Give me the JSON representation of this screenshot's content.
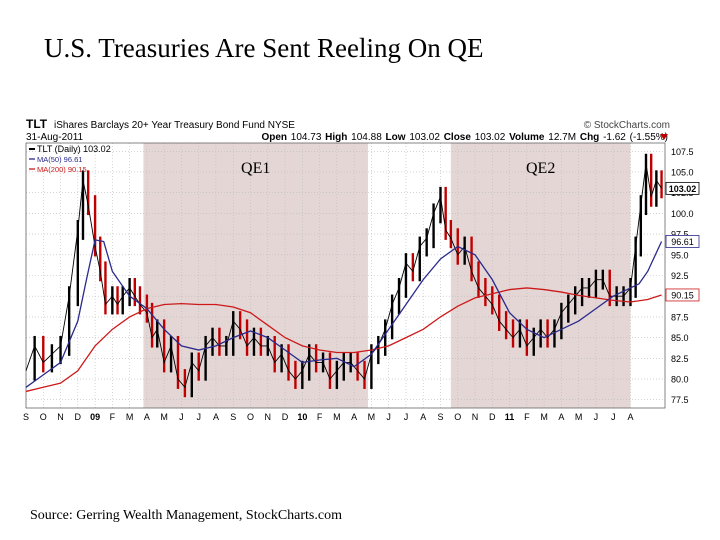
{
  "slide": {
    "title": "U.S. Treasuries Are Sent Reeling On QE",
    "source": "Source: Gerring Wealth Management, StockCharts.com"
  },
  "header": {
    "symbol": "TLT",
    "fund_name": "iShares Barclays 20+ Year Treasury Bond Fund",
    "exchange": "NYSE",
    "credit": "© StockCharts.com",
    "date": "31-Aug-2011",
    "open_label": "Open",
    "open": "104.73",
    "high_label": "High",
    "high": "104.88",
    "low_label": "Low",
    "low": "103.02",
    "close_label": "Close",
    "close": "103.02",
    "volume_label": "Volume",
    "volume": "12.7M",
    "chg_label": "Chg",
    "chg": "-1.62 (-1.55%)"
  },
  "colors": {
    "price": "#000000",
    "price_down": "#c00000",
    "ma50": "#2a2a8c",
    "ma200": "#cc1a1a",
    "qe_band": "#dcc8c8",
    "grid": "#bbbbbb"
  },
  "chart_data": {
    "type": "line",
    "title": "TLT (Daily) 103.02",
    "ylim": [
      76.5,
      108.5
    ],
    "y_ticks": [
      77.5,
      80.0,
      82.5,
      85.0,
      87.5,
      90.0,
      92.5,
      95.0,
      97.5,
      100.0,
      102.5,
      105.0,
      107.5
    ],
    "y_tick_labels": [
      "77.5",
      "80.0",
      "82.5",
      "85.0",
      "87.5",
      "90.0",
      "92.5",
      "95.0",
      "97.5",
      "100.0",
      "102.5",
      "105.0",
      "107.5"
    ],
    "x_range": [
      0,
      37
    ],
    "x_ticks": [
      {
        "label": "S",
        "pos": 0
      },
      {
        "label": "O",
        "pos": 1
      },
      {
        "label": "N",
        "pos": 2
      },
      {
        "label": "D",
        "pos": 3
      },
      {
        "label": "09",
        "pos": 4,
        "bold": true
      },
      {
        "label": "F",
        "pos": 5
      },
      {
        "label": "M",
        "pos": 6
      },
      {
        "label": "A",
        "pos": 7
      },
      {
        "label": "M",
        "pos": 8
      },
      {
        "label": "J",
        "pos": 9
      },
      {
        "label": "J",
        "pos": 10
      },
      {
        "label": "A",
        "pos": 11
      },
      {
        "label": "S",
        "pos": 12
      },
      {
        "label": "O",
        "pos": 13
      },
      {
        "label": "N",
        "pos": 14
      },
      {
        "label": "D",
        "pos": 15
      },
      {
        "label": "10",
        "pos": 16,
        "bold": true
      },
      {
        "label": "F",
        "pos": 17
      },
      {
        "label": "M",
        "pos": 18
      },
      {
        "label": "A",
        "pos": 19
      },
      {
        "label": "M",
        "pos": 20
      },
      {
        "label": "J",
        "pos": 21
      },
      {
        "label": "J",
        "pos": 22
      },
      {
        "label": "A",
        "pos": 23
      },
      {
        "label": "S",
        "pos": 24
      },
      {
        "label": "O",
        "pos": 25
      },
      {
        "label": "N",
        "pos": 26
      },
      {
        "label": "D",
        "pos": 27
      },
      {
        "label": "11",
        "pos": 28,
        "bold": true
      },
      {
        "label": "F",
        "pos": 29
      },
      {
        "label": "M",
        "pos": 30
      },
      {
        "label": "A",
        "pos": 31
      },
      {
        "label": "M",
        "pos": 32
      },
      {
        "label": "J",
        "pos": 33
      },
      {
        "label": "J",
        "pos": 34
      },
      {
        "label": "A",
        "pos": 35
      }
    ],
    "annotations": [
      {
        "label": "QE1",
        "from": 6.8,
        "to": 19.8
      },
      {
        "label": "QE2",
        "from": 24.6,
        "to": 35.0
      }
    ],
    "legend": [
      {
        "label": "TLT (Daily) 103.02",
        "series": "price"
      },
      {
        "label": "MA(50) 96.61",
        "series": "ma50"
      },
      {
        "label": "MA(200) 90.15",
        "series": "ma200"
      }
    ],
    "last_value_labels": [
      {
        "label": "103.02",
        "value": 103.02,
        "series": "price"
      },
      {
        "label": "96.61",
        "value": 96.61,
        "series": "ma50"
      },
      {
        "label": "90.15",
        "value": 90.15,
        "series": "ma200"
      }
    ],
    "series": [
      {
        "name": "TLT (Daily)",
        "key": "price",
        "x": [
          0,
          0.5,
          1,
          1.5,
          2,
          2.5,
          3,
          3.3,
          3.6,
          4,
          4.3,
          4.6,
          5,
          5.3,
          5.6,
          6,
          6.3,
          6.6,
          7,
          7.3,
          7.6,
          8,
          8.4,
          8.8,
          9.2,
          9.6,
          10,
          10.4,
          10.8,
          11.2,
          11.6,
          12,
          12.4,
          12.8,
          13.2,
          13.6,
          14,
          14.4,
          14.8,
          15.2,
          15.6,
          16,
          16.4,
          16.8,
          17.2,
          17.6,
          18,
          18.4,
          18.8,
          19.2,
          19.6,
          20,
          20.4,
          20.8,
          21.2,
          21.6,
          22,
          22.4,
          22.8,
          23.2,
          23.6,
          24,
          24.3,
          24.6,
          25,
          25.4,
          25.8,
          26.2,
          26.6,
          27,
          27.4,
          27.8,
          28.2,
          28.6,
          29,
          29.4,
          29.8,
          30.2,
          30.6,
          31,
          31.4,
          31.8,
          32.2,
          32.6,
          33,
          33.4,
          33.8,
          34.2,
          34.6,
          35,
          35.3,
          35.6,
          35.9,
          36.2,
          36.5,
          36.8
        ],
        "values": [
          81,
          84,
          82,
          83,
          84,
          90,
          98,
          104,
          101,
          96,
          93,
          89,
          90,
          89,
          90,
          91,
          90,
          89,
          88,
          85,
          86,
          82,
          84,
          80,
          79,
          82,
          81,
          84,
          85,
          84,
          84,
          87,
          86,
          84,
          85,
          84,
          84,
          82,
          83,
          81,
          80,
          81,
          83,
          82,
          82,
          80,
          81,
          82,
          82,
          81,
          80,
          83,
          84,
          86,
          89,
          91,
          94,
          93,
          96,
          97,
          100,
          102,
          98,
          97,
          95,
          96,
          93,
          91,
          90,
          89,
          87,
          86,
          85,
          86,
          84,
          85,
          86,
          85,
          86,
          88,
          89,
          90,
          91,
          91,
          92,
          92,
          90,
          90,
          90,
          91,
          96,
          101,
          106,
          102,
          104,
          103.02
        ]
      },
      {
        "name": "MA(50)",
        "key": "ma50",
        "x": [
          0,
          1,
          2,
          3,
          3.5,
          4,
          4.5,
          5,
          6,
          7,
          8,
          9,
          10,
          11,
          12,
          13,
          14,
          15,
          16,
          17,
          18,
          19,
          20,
          21,
          22,
          23,
          24,
          25,
          26,
          27,
          28,
          29,
          30,
          31,
          32,
          33,
          34,
          35,
          35.5,
          36,
          36.8
        ],
        "values": [
          79,
          80.5,
          82,
          87,
          92,
          96.8,
          96.6,
          93,
          90,
          88.5,
          86,
          84,
          83.5,
          84,
          85,
          85.8,
          85,
          83.5,
          82,
          82.3,
          82.5,
          81.5,
          83,
          86,
          89,
          92,
          94.5,
          96,
          95,
          92,
          88,
          86,
          85,
          86,
          87,
          88.5,
          90,
          91,
          91.5,
          93,
          96.61
        ]
      },
      {
        "name": "MA(200)",
        "key": "ma200",
        "x": [
          0,
          1,
          2,
          3,
          4,
          5,
          6,
          7,
          8,
          9,
          10,
          11,
          12,
          13,
          14,
          15,
          16,
          17,
          18,
          19,
          20,
          21,
          22,
          23,
          24,
          25,
          26,
          27,
          28,
          29,
          30,
          31,
          32,
          33,
          34,
          35,
          36,
          36.8
        ],
        "values": [
          78.5,
          79,
          79.5,
          81,
          84,
          86,
          87.5,
          88.5,
          89,
          89.1,
          89,
          89,
          88.7,
          88,
          86.5,
          85,
          84,
          83.5,
          83.2,
          83.2,
          83.5,
          84,
          85,
          86,
          87.5,
          88.8,
          89.8,
          90.3,
          90.8,
          91,
          90.8,
          90.5,
          90.1,
          89.8,
          89.5,
          89.3,
          89.6,
          90.15
        ]
      }
    ]
  }
}
